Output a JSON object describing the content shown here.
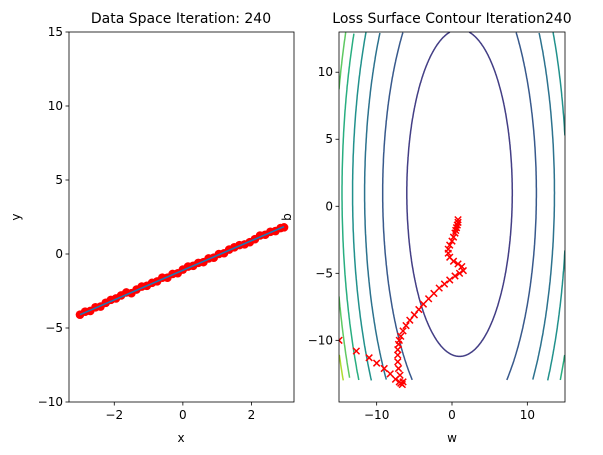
{
  "chart_data": [
    {
      "type": "scatter",
      "title": "Data Space Iteration: 240",
      "xlabel": "x",
      "ylabel": "y",
      "xlim": [
        -3.32,
        3.24
      ],
      "ylim": [
        -10,
        15
      ],
      "xticks": [
        -2,
        0,
        2
      ],
      "xtick_labels": [
        "−2",
        "0",
        "2"
      ],
      "yticks": [
        -10,
        -5,
        0,
        5,
        10,
        15
      ],
      "ytick_labels": [
        "−10",
        "−5",
        "0",
        "5",
        "10",
        "15"
      ],
      "grid": false,
      "points_color": "#ff0000",
      "line_color": "#1f77b4",
      "points": {
        "x": [
          -3.0,
          -2.85,
          -2.7,
          -2.55,
          -2.4,
          -2.25,
          -2.1,
          -1.95,
          -1.8,
          -1.65,
          -1.5,
          -1.35,
          -1.2,
          -1.05,
          -0.9,
          -0.75,
          -0.6,
          -0.45,
          -0.3,
          -0.15,
          0,
          0.15,
          0.3,
          0.45,
          0.6,
          0.75,
          0.9,
          1.05,
          1.2,
          1.35,
          1.5,
          1.65,
          1.8,
          1.95,
          2.1,
          2.25,
          2.4,
          2.55,
          2.7,
          2.85,
          2.95
        ],
        "y": [
          -4.1,
          -3.9,
          -3.85,
          -3.6,
          -3.55,
          -3.3,
          -3.1,
          -3.0,
          -2.8,
          -2.6,
          -2.65,
          -2.4,
          -2.2,
          -2.15,
          -1.95,
          -1.85,
          -1.6,
          -1.6,
          -1.35,
          -1.3,
          -1.05,
          -0.85,
          -0.8,
          -0.6,
          -0.55,
          -0.3,
          -0.25,
          0.0,
          0.05,
          0.3,
          0.45,
          0.6,
          0.65,
          0.8,
          1.0,
          1.25,
          1.3,
          1.5,
          1.55,
          1.75,
          1.8
        ]
      },
      "fit_line": {
        "x": [
          -3.0,
          2.95
        ],
        "y": [
          -4.1,
          1.85
        ]
      }
    },
    {
      "type": "contour",
      "title": "Loss Surface Contour Iteration240",
      "xlabel": "w",
      "ylabel": "b",
      "xlim": [
        -15,
        15
      ],
      "ylim": [
        -14.6,
        13
      ],
      "xticks": [
        -10,
        0,
        10
      ],
      "xtick_labels": [
        "−10",
        "0",
        "10"
      ],
      "yticks": [
        -10,
        -5,
        0,
        5,
        10
      ],
      "ytick_labels": [
        "−10",
        "−5",
        "0",
        "5",
        "10"
      ],
      "grid": false,
      "colormap": "viridis",
      "contour_domain": {
        "w": [
          -15,
          15
        ],
        "b": [
          -13,
          13
        ]
      },
      "minimum": {
        "w": 1.0,
        "b": 1.0
      },
      "contours": [
        {
          "semi_w": 7.0,
          "semi_b": 12.2,
          "color": "#433e85"
        },
        {
          "semi_w": 10.2,
          "semi_b": 17.7,
          "color": "#38598c"
        },
        {
          "semi_w": 12.6,
          "semi_b": 21.9,
          "color": "#2c728e"
        },
        {
          "semi_w": 14.2,
          "semi_b": 24.7,
          "color": "#21918c"
        },
        {
          "semi_w": 15.6,
          "semi_b": 27.1,
          "color": "#28ae80"
        },
        {
          "semi_w": 16.6,
          "semi_b": 28.9,
          "color": "#5ec962"
        },
        {
          "semi_w": 17.4,
          "semi_b": 30.3,
          "color": "#addc30"
        }
      ],
      "path_color": "#ff0000",
      "path": {
        "w": [
          -15,
          -12.7,
          -11,
          -10,
          -9,
          -8.2,
          -7.5,
          -7.0,
          -6.8,
          -6.6,
          -6.5,
          -6.9,
          -7.1,
          -7.2,
          -7.2,
          -7.2,
          -7.1,
          -7.0,
          -6.8,
          -6.5,
          -6.1,
          -5.6,
          -5.0,
          -4.4,
          -3.8,
          -3.1,
          -2.4,
          -1.7,
          -1.0,
          -0.3,
          0.4,
          1.0,
          1.5,
          1.3,
          0.8,
          0.2,
          -0.3,
          -0.5,
          -0.5,
          -0.3,
          0.0,
          0.2,
          0.4,
          0.5,
          0.6,
          0.7,
          0.8,
          0.8
        ],
        "b": [
          -10,
          -10.8,
          -11.3,
          -11.7,
          -12.1,
          -12.5,
          -12.9,
          -13.1,
          -13.2,
          -13.3,
          -13.1,
          -12.6,
          -12.1,
          -11.6,
          -11.1,
          -10.7,
          -10.3,
          -10.0,
          -9.7,
          -9.3,
          -8.9,
          -8.5,
          -8.1,
          -7.7,
          -7.3,
          -6.9,
          -6.5,
          -6.1,
          -5.8,
          -5.5,
          -5.2,
          -5.0,
          -4.8,
          -4.5,
          -4.3,
          -4.1,
          -3.8,
          -3.5,
          -3.2,
          -2.9,
          -2.6,
          -2.3,
          -2.0,
          -1.8,
          -1.6,
          -1.4,
          -1.2,
          -1.0
        ]
      }
    }
  ]
}
